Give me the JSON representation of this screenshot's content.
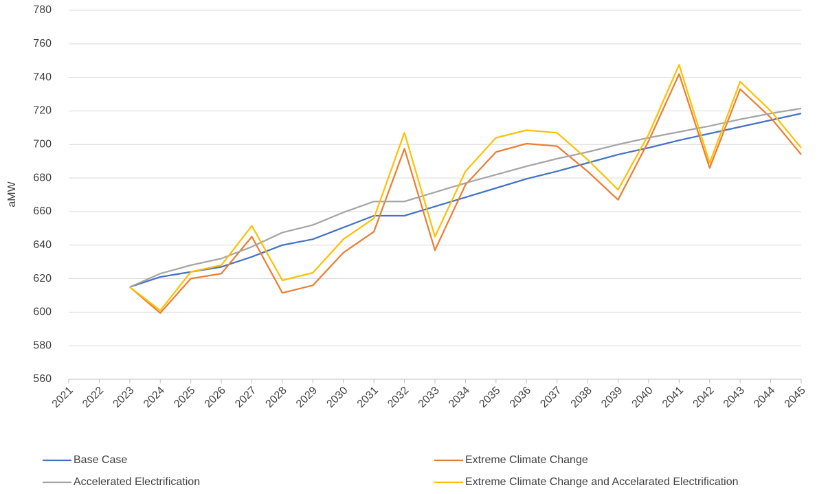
{
  "chart_data": {
    "type": "line",
    "y_label": "aMW",
    "categories": [
      "2021",
      "2022",
      "2023",
      "2024",
      "2025",
      "2026",
      "2027",
      "2028",
      "2029",
      "2030",
      "2031",
      "2032",
      "2033",
      "2034",
      "2035",
      "2036",
      "2037",
      "2038",
      "2039",
      "2040",
      "2041",
      "2042",
      "2043",
      "2044",
      "2045"
    ],
    "series": [
      {
        "name": "Base Case",
        "color": "#4472c4",
        "values": [
          null,
          null,
          615,
          621,
          624,
          627,
          633,
          640,
          643.5,
          650.5,
          657.5,
          657.5,
          663,
          668.5,
          674,
          679.5,
          684,
          689,
          694,
          698,
          702.5,
          706.5,
          710.5,
          714.5,
          718.5
        ]
      },
      {
        "name": "Extreme Climate Change",
        "color": "#ed7d31",
        "values": [
          null,
          null,
          615,
          599.5,
          620,
          623,
          645,
          611.5,
          616,
          635.5,
          648,
          697.5,
          637,
          676,
          695.5,
          700.5,
          699,
          684,
          667,
          702,
          742,
          686,
          733,
          716,
          694
        ]
      },
      {
        "name": "Accelerated Electrification",
        "color": "#a5a5a5",
        "values": [
          null,
          null,
          615,
          623,
          628,
          632,
          639,
          647.5,
          652,
          659.5,
          666,
          666,
          671.5,
          677,
          682,
          687,
          691.5,
          695.5,
          700,
          704,
          707.5,
          711,
          715,
          718.5,
          721.5
        ]
      },
      {
        "name": "Extreme Climate Change and Accelarated Electrification",
        "color": "#ffc000",
        "values": [
          null,
          null,
          615,
          601,
          624,
          628,
          651.5,
          619,
          623.5,
          643.5,
          656,
          707,
          645,
          684,
          704,
          708.5,
          707,
          691,
          673,
          706,
          747.5,
          689,
          737.5,
          720,
          698
        ]
      }
    ],
    "ylim": [
      560,
      780
    ],
    "yticks": [
      560,
      580,
      600,
      620,
      640,
      660,
      680,
      700,
      720,
      740,
      760,
      780
    ],
    "grid": true,
    "legend": "bottom"
  }
}
